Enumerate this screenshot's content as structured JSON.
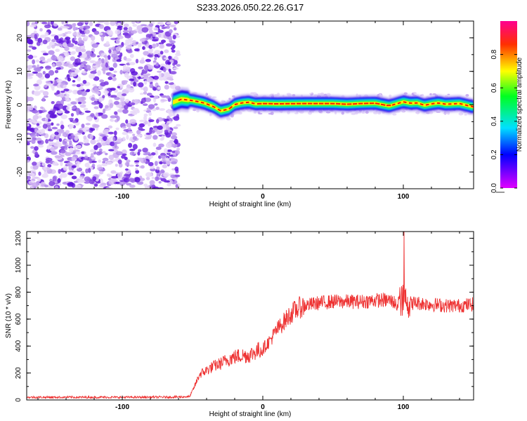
{
  "chart_data": [
    {
      "type": "heatmap",
      "title": "S233.2026.050.22.26.G17",
      "xlabel": "Height of straight line (km)",
      "ylabel": "Frequency (Hz)",
      "xlim": [
        -168,
        150
      ],
      "ylim": [
        -25,
        25
      ],
      "xticks": [
        -100,
        0,
        100
      ],
      "yticks": [
        -20,
        -10,
        0,
        10,
        20
      ],
      "noise_region_end_km": -60,
      "ridge": {
        "x": [
          -65,
          -58,
          -50,
          -42,
          -35,
          -30,
          -24,
          -20,
          -15,
          -10,
          -5,
          0,
          10,
          30,
          50,
          60,
          70,
          80,
          85,
          90,
          95,
          100,
          105,
          110,
          115,
          120,
          125,
          130,
          140,
          150
        ],
        "freq": [
          0.6,
          1.7,
          1.3,
          0.6,
          -0.5,
          -1.8,
          -1.2,
          0.1,
          0.6,
          0.8,
          0.3,
          0.4,
          0.3,
          0.4,
          0.4,
          0.2,
          0.4,
          0.5,
          0.1,
          -0.3,
          0.3,
          0.9,
          0.5,
          0.6,
          -0.1,
          0.3,
          0.6,
          0.2,
          0.4,
          -0.6
        ]
      },
      "colorbar": {
        "label": "Normalized spectral amplitude",
        "ticks": [
          0.0,
          0.2,
          0.4,
          0.6,
          0.8
        ],
        "ticklabels": [
          "0.0",
          "0.2",
          "0.4",
          "0.6",
          "0.8"
        ],
        "range": [
          0,
          1
        ]
      }
    },
    {
      "type": "line",
      "xlabel": "Height of straight line (km)",
      "ylabel": "SNR (10 * v/v)",
      "xlim": [
        -168,
        150
      ],
      "ylim": [
        0,
        1250
      ],
      "xticks": [
        -100,
        0,
        100
      ],
      "yticks": [
        0,
        200,
        400,
        600,
        800,
        1000,
        1200
      ],
      "series": [
        {
          "name": "SNR",
          "color": "#ee3333",
          "x": [
            -168,
            -130,
            -90,
            -60,
            -52,
            -49,
            -45,
            -40,
            -35,
            -30,
            -25,
            -20,
            -15,
            -10,
            -5,
            0,
            5,
            10,
            15,
            20,
            25,
            30,
            40,
            50,
            60,
            70,
            80,
            90,
            95,
            100,
            105,
            110,
            120,
            130,
            140,
            150
          ],
          "values": [
            20,
            20,
            20,
            22,
            25,
            90,
            190,
            220,
            250,
            270,
            300,
            320,
            330,
            330,
            360,
            380,
            440,
            520,
            580,
            640,
            680,
            700,
            720,
            730,
            730,
            730,
            740,
            740,
            720,
            740,
            720,
            720,
            710,
            700,
            700,
            710
          ],
          "spike": {
            "x": 100.5,
            "value": 1250
          }
        }
      ]
    }
  ]
}
